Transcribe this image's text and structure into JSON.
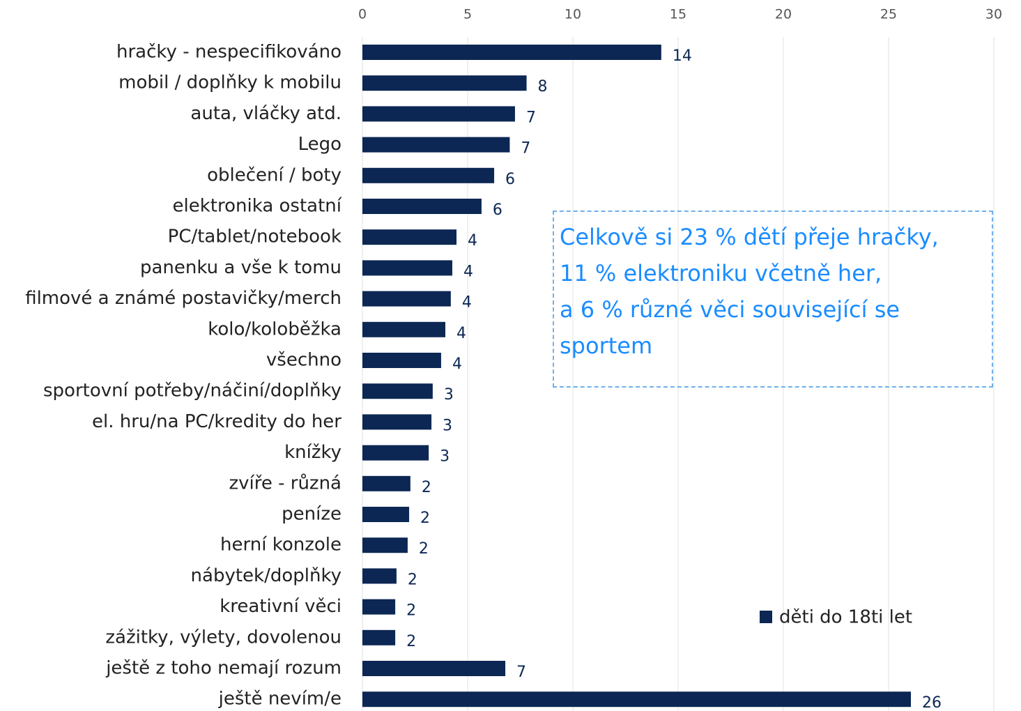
{
  "chart_data": {
    "type": "hbar",
    "categories": [
      "hračky - nespecifikováno",
      "mobil / doplňky k mobilu",
      "auta, vláčky atd.",
      "Lego",
      "oblečení / boty",
      "elektronika ostatní",
      "PC/tablet/notebook",
      "panenku a vše k tomu",
      "filmové a známé postavičky/merch",
      "kolo/koloběžka",
      "všechno",
      "sportovní potřeby/náčiní/doplňky",
      "el. hru/na PC/kredity do her",
      "knížky",
      "zvíře - různá",
      "peníze",
      "herní konzole",
      "nábytek/doplňky",
      "kreativní věci",
      "zážitky, výlety, dovolenou",
      "ještě z toho nemají rozum",
      "ještě nevím/e"
    ],
    "series": [
      {
        "name": "děti do 18ti let",
        "color": "#0c2753",
        "values": [
          14.2,
          7.8,
          7.25,
          7.0,
          6.26,
          5.66,
          4.47,
          4.27,
          4.2,
          3.94,
          3.74,
          3.34,
          3.28,
          3.15,
          2.28,
          2.22,
          2.15,
          1.62,
          1.56,
          1.56,
          6.79,
          26.06
        ],
        "value_labels": [
          "14",
          "8",
          "7",
          "7",
          "6",
          "6",
          "4",
          "4",
          "4",
          "4",
          "4",
          "3",
          "3",
          "3",
          "2",
          "2",
          "2",
          "2",
          "2",
          "2",
          "7",
          "26"
        ]
      }
    ],
    "xlim": [
      0,
      30
    ],
    "xticks": [
      0,
      5,
      10,
      15,
      20,
      25,
      30
    ],
    "grid": true,
    "legend": "lower right",
    "annotation": [
      "Celkově si 23 % dětí přeje hračky,",
      "11 % elektroniku včetně her,",
      "a 6 % různé věci související se sportem"
    ]
  }
}
